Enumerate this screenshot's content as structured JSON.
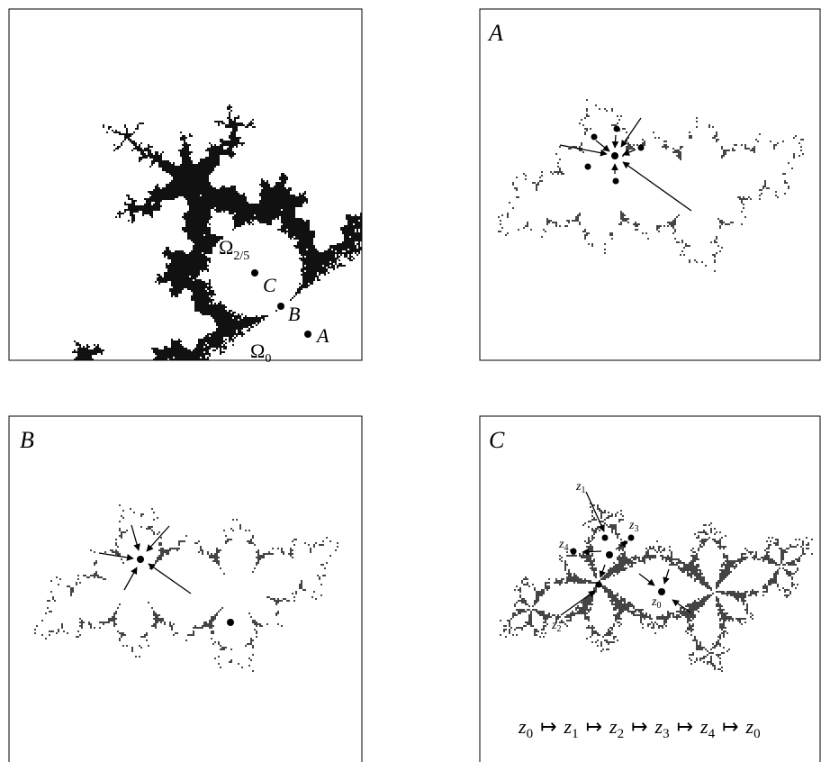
{
  "mandelbrot_panel": {
    "labels": [
      {
        "symbol": "Ω",
        "subscript": "2/5"
      },
      {
        "text": "C"
      },
      {
        "text": "B"
      },
      {
        "text": "A"
      },
      {
        "symbol": "Ω",
        "subscript": "0"
      }
    ]
  },
  "panel_a": {
    "title": "A"
  },
  "panel_b": {
    "title": "B"
  },
  "panel_c": {
    "title": "C",
    "labels": [
      {
        "symbol": "z",
        "subscript": "1"
      },
      {
        "symbol": "z",
        "subscript": "3"
      },
      {
        "symbol": "z",
        "subscript": "4"
      },
      {
        "symbol": "z",
        "subscript": "2"
      },
      {
        "symbol": "z",
        "subscript": "0"
      }
    ],
    "formula": {
      "arrow": "↦",
      "terms": [
        {
          "symbol": "z",
          "subscript": "0"
        },
        {
          "symbol": "z",
          "subscript": "1"
        },
        {
          "symbol": "z",
          "subscript": "2"
        },
        {
          "symbol": "z",
          "subscript": "3"
        },
        {
          "symbol": "z",
          "subscript": "4"
        },
        {
          "symbol": "z",
          "subscript": "0"
        }
      ]
    }
  }
}
